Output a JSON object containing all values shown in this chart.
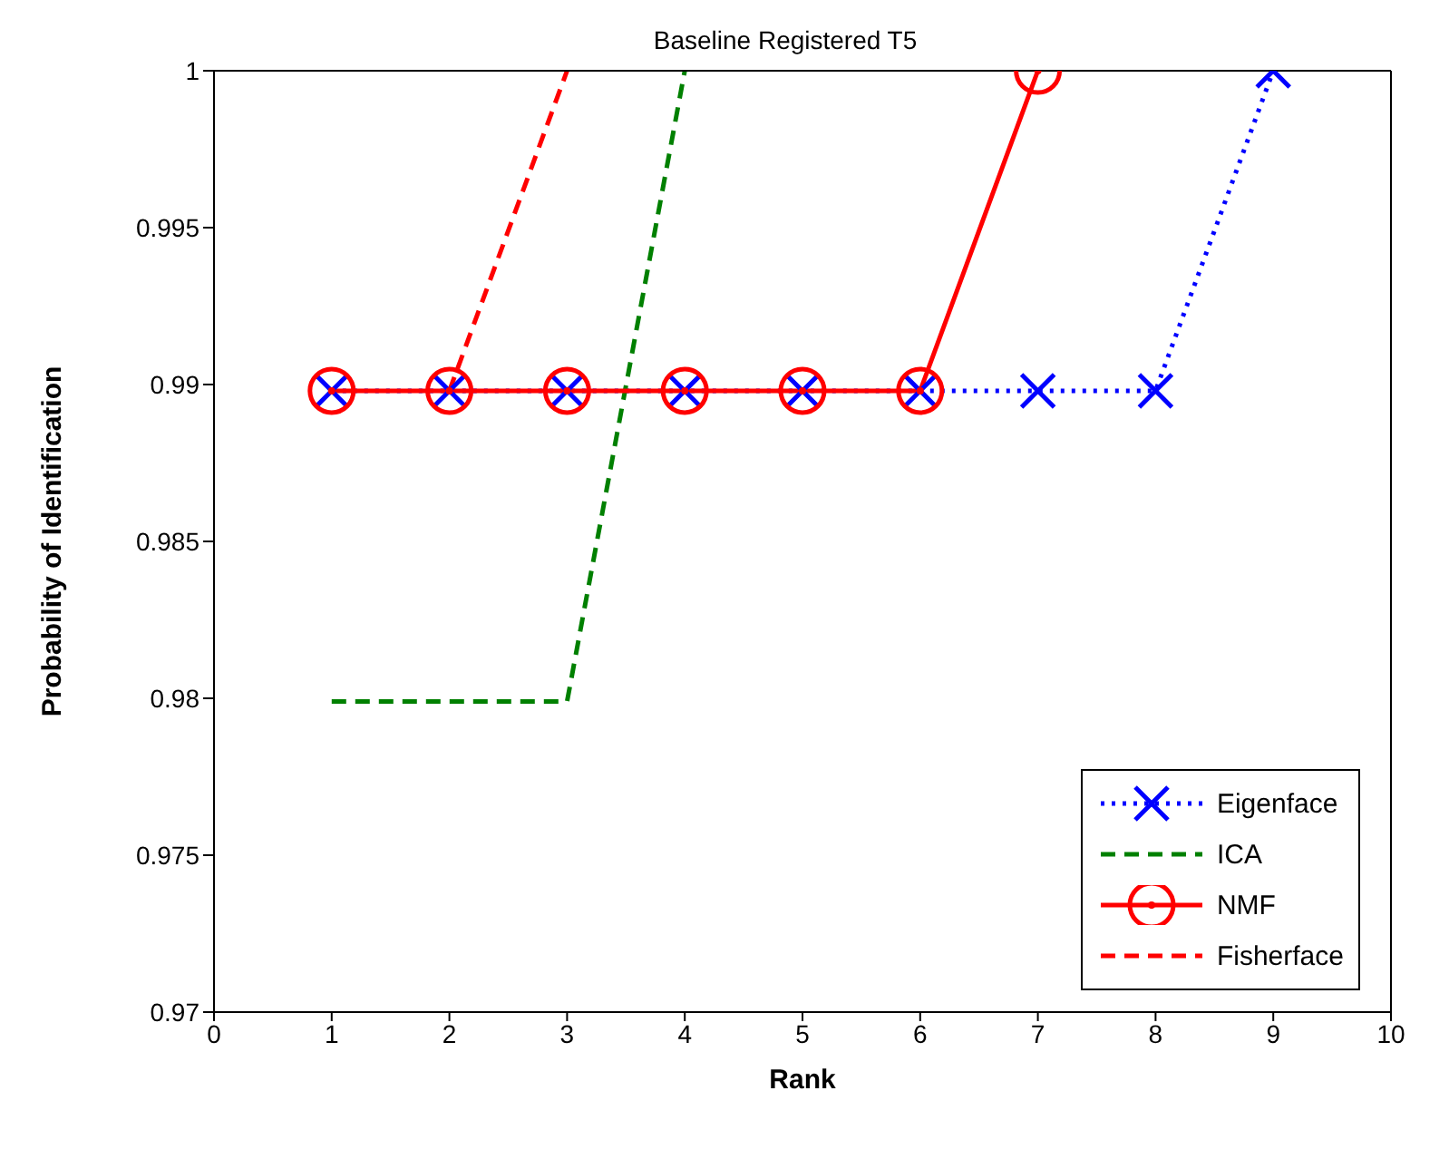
{
  "chart_data": {
    "type": "line",
    "title": "Baseline Registered T5",
    "xlabel": "Rank",
    "ylabel": "Probability of Identification",
    "xlim": [
      0,
      10
    ],
    "xticks": [
      0,
      1,
      2,
      3,
      4,
      5,
      6,
      7,
      8,
      9,
      10
    ],
    "ylim": [
      0.97,
      1
    ],
    "yticks": [
      0.97,
      0.975,
      0.98,
      0.985,
      0.99,
      0.995,
      {
        "value": 1,
        "label": "1"
      }
    ],
    "grid": false,
    "legend": "bottom right",
    "series": [
      {
        "name": "Eigenface",
        "color": "#0000ff",
        "marker": "cross",
        "line_style": "dotted",
        "x": [
          1,
          2,
          3,
          4,
          5,
          6,
          7,
          8,
          9
        ],
        "values": [
          0.9898,
          0.9898,
          0.9898,
          0.9898,
          0.9898,
          0.9898,
          0.9898,
          0.9898,
          1
        ]
      },
      {
        "name": "ICA",
        "color": "#008000",
        "marker": "none",
        "line_style": "dashed",
        "x": [
          1,
          2,
          3,
          4
        ],
        "values": [
          0.9799,
          0.9799,
          0.9799,
          1
        ]
      },
      {
        "name": "NMF",
        "color": "#ff0000",
        "marker": "circle",
        "line_style": "solid",
        "x": [
          1,
          2,
          3,
          4,
          5,
          6,
          7
        ],
        "values": [
          0.9898,
          0.9898,
          0.9898,
          0.9898,
          0.9898,
          0.9898,
          1
        ]
      },
      {
        "name": "Fisherface",
        "color": "#ff0000",
        "line_style": "dashed",
        "x": [
          2,
          3
        ],
        "values": [
          0.9898,
          1
        ]
      }
    ]
  }
}
